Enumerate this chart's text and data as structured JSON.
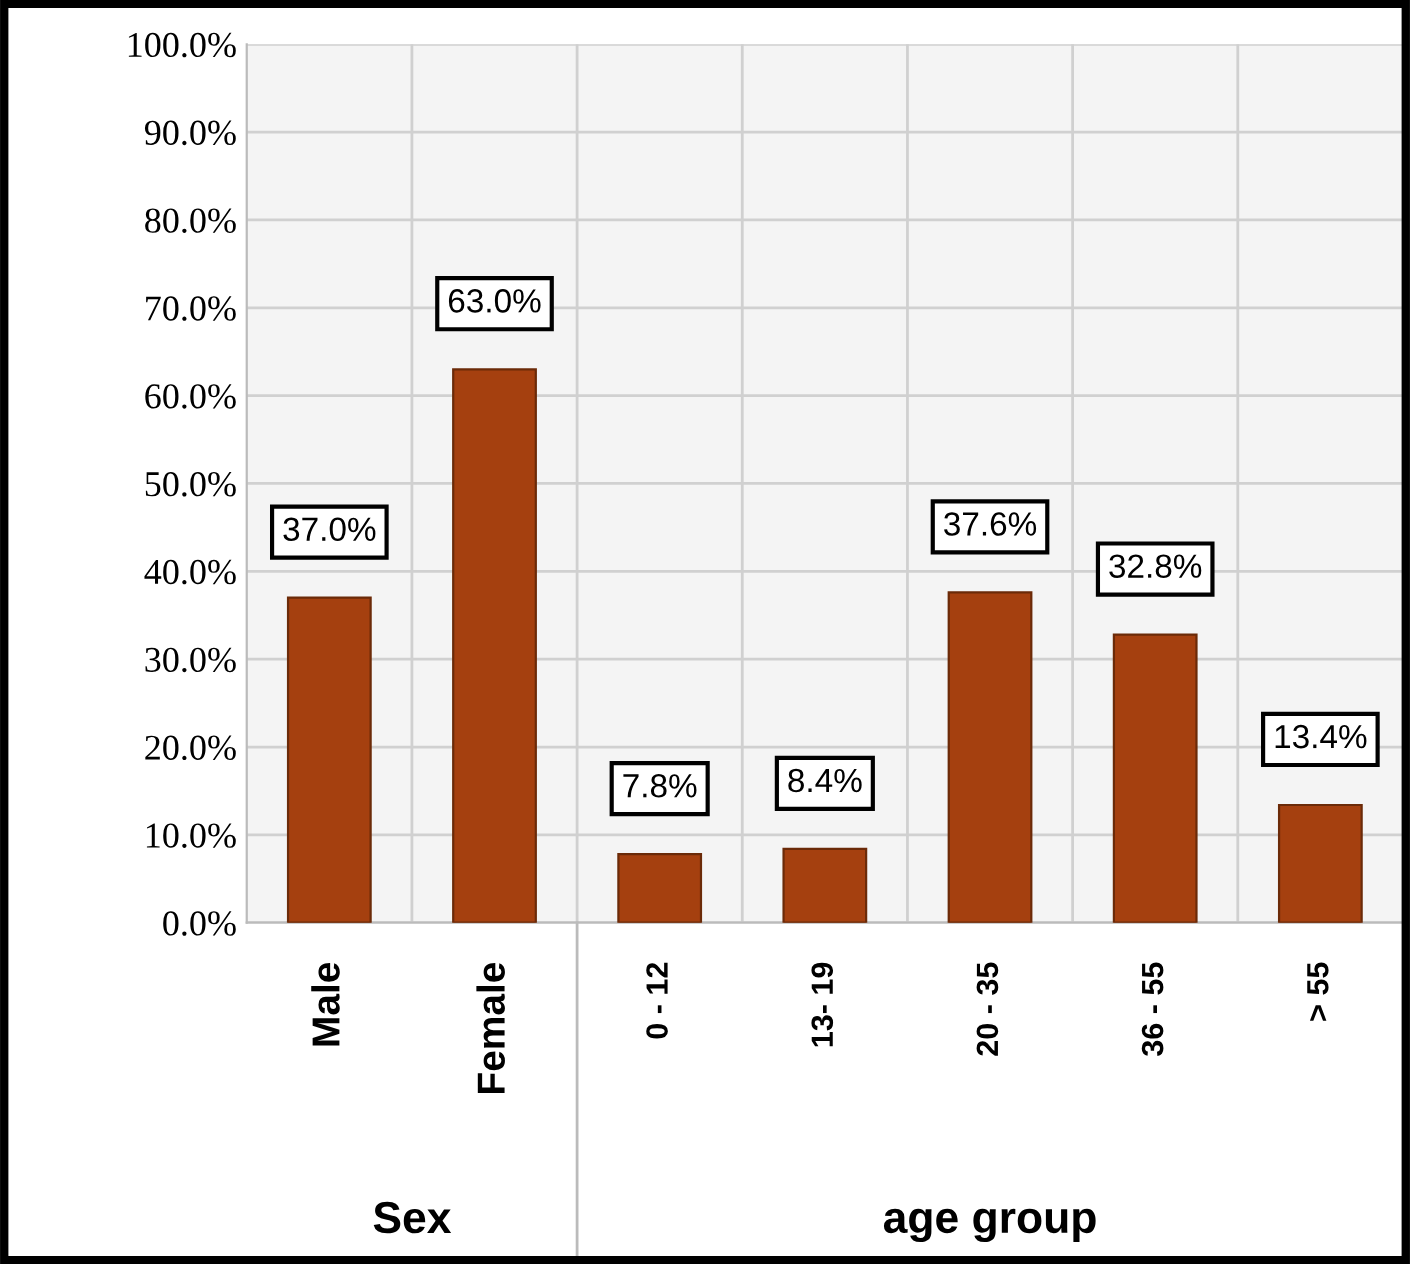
{
  "chart_data": {
    "type": "bar",
    "categories": [
      "Male",
      "Female",
      "0 - 12",
      "13- 19",
      "20 - 35",
      "36 - 55",
      "> 55"
    ],
    "values": [
      37.0,
      63.0,
      7.8,
      8.4,
      37.6,
      32.8,
      13.4
    ],
    "value_labels": [
      "37.0%",
      "63.0%",
      "7.8%",
      "8.4%",
      "37.6%",
      "32.8%",
      "13.4%"
    ],
    "color": "#a5400f",
    "ylim": [
      0,
      100
    ],
    "yticks": [
      {
        "value": 0,
        "label": "0.0%"
      },
      {
        "value": 10,
        "label": "10.0%"
      },
      {
        "value": 20,
        "label": "20.0%"
      },
      {
        "value": 30,
        "label": "30.0%"
      },
      {
        "value": 40,
        "label": "40.0%"
      },
      {
        "value": 50,
        "label": "50.0%"
      },
      {
        "value": 60,
        "label": "60.0%"
      },
      {
        "value": 70,
        "label": "70.0%"
      },
      {
        "value": 80,
        "label": "80.0%"
      },
      {
        "value": 90,
        "label": "90.0%"
      },
      {
        "value": 100,
        "label": "100.0%"
      }
    ],
    "grid": true,
    "annotations": [
      "Sex",
      "age group"
    ]
  }
}
